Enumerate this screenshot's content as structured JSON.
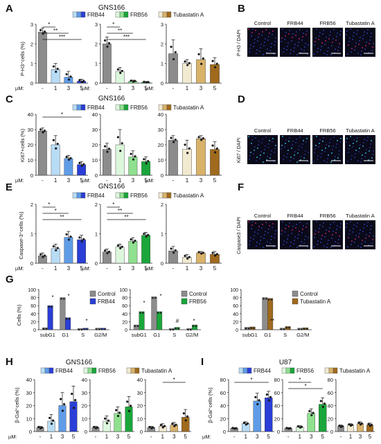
{
  "colors": {
    "gray": "#8c8c8c",
    "frb44": "#2b3ed6",
    "frb44_light": "#b8dcf5",
    "frb44_mid": "#5f9ce8",
    "frb56": "#1aa63a",
    "frb56_light": "#dcf7dc",
    "frb56_mid": "#8fe08f",
    "tuba": "#a06a1e",
    "tuba_light": "#f2ead0",
    "tuba_mid": "#d9b26a",
    "micro_bg": "#0a0a1a"
  },
  "legend": {
    "frb44": "FRB44",
    "frb56": "FRB56",
    "tuba": "Tubastatin  A",
    "control": "Control"
  },
  "dose_labels": [
    "-",
    "1",
    "3",
    "5"
  ],
  "um_label": "µM:",
  "panels": {
    "A": {
      "letter": "A",
      "title": "GNS166",
      "ylabel": "P-H3⁺cells (%)"
    },
    "B": {
      "letter": "B",
      "ylabel": "P-H3 / DAPI",
      "cols": [
        "Control",
        "FRB44",
        "FRB56",
        "Tubastatin  A"
      ]
    },
    "C": {
      "letter": "C",
      "title": "GNS166",
      "ylabel": "Ki67+cells (%)"
    },
    "D": {
      "letter": "D",
      "ylabel": "Ki67 / DAPI",
      "cols": [
        "Control",
        "FRB44",
        "FRB56",
        "Tubastatin  A"
      ]
    },
    "E": {
      "letter": "E",
      "title": "GNS166",
      "ylabel": "Caspase-3⁺cells (%)"
    },
    "F": {
      "letter": "F",
      "ylabel": "Caspase3 / DAPI",
      "cols": [
        "Control",
        "FRB44",
        "FRB56",
        "Tubastatin  A"
      ]
    },
    "G": {
      "letter": "G",
      "ylabel": "Cells (%)"
    },
    "H": {
      "letter": "H",
      "title": "GNS166",
      "ylabel": "β-Gal⁺cells (%)"
    },
    "I": {
      "letter": "I",
      "title": "U87",
      "ylabel": "β-Gal⁺cells (%)"
    }
  },
  "chart_data": [
    {
      "panel": "A",
      "type": "bar",
      "categories": [
        "-",
        "1",
        "3",
        "5"
      ],
      "ylabel": "P-H3⁺cells (%)",
      "ylim": [
        0,
        3
      ],
      "yticks": [
        0,
        1,
        2,
        3
      ],
      "series": [
        {
          "name": "FRB44",
          "values": [
            2.6,
            0.7,
            0.3,
            0.1
          ],
          "errors": [
            0.2,
            0.3,
            0.3,
            0.1
          ]
        }
      ],
      "significance": [
        "*",
        "**",
        "***",
        "***"
      ]
    },
    {
      "panel": "A",
      "type": "bar",
      "categories": [
        "-",
        "1",
        "3",
        "5"
      ],
      "ylim": [
        0,
        3
      ],
      "yticks": [
        0,
        1,
        2,
        3
      ],
      "series": [
        {
          "name": "FRB56",
          "values": [
            2.0,
            0.6,
            0.1,
            0.05
          ],
          "errors": [
            0.35,
            0.2,
            0.05,
            0.03
          ]
        }
      ],
      "significance": [
        "*",
        "**",
        "***",
        "***"
      ]
    },
    {
      "panel": "A",
      "type": "bar",
      "categories": [
        "-",
        "1",
        "3",
        "5"
      ],
      "ylim": [
        0,
        3
      ],
      "yticks": [
        0,
        1,
        2,
        3
      ],
      "series": [
        {
          "name": "Tubastatin  A",
          "values": [
            1.5,
            1.0,
            1.2,
            0.95
          ],
          "errors": [
            0.7,
            0.2,
            0.55,
            0.35
          ]
        }
      ]
    },
    {
      "panel": "C",
      "type": "bar",
      "categories": [
        "-",
        "1",
        "3",
        "5"
      ],
      "ylabel": "Ki67+cells (%)",
      "ylim": [
        0,
        40
      ],
      "yticks": [
        0,
        10,
        20,
        30,
        40
      ],
      "series": [
        {
          "name": "FRB44",
          "values": [
            29,
            20,
            11,
            7
          ],
          "errors": [
            2,
            6,
            2,
            2
          ]
        }
      ],
      "significance": [
        "*"
      ]
    },
    {
      "panel": "C",
      "type": "bar",
      "categories": [
        "-",
        "1",
        "3",
        "5"
      ],
      "ylim": [
        0,
        40
      ],
      "yticks": [
        0,
        10,
        20,
        30,
        40
      ],
      "series": [
        {
          "name": "FRB56",
          "values": [
            17,
            20,
            12,
            9
          ],
          "errors": [
            4,
            10,
            4,
            3
          ]
        }
      ]
    },
    {
      "panel": "C",
      "type": "bar",
      "categories": [
        "-",
        "1",
        "3",
        "5"
      ],
      "ylim": [
        0,
        40
      ],
      "yticks": [
        0,
        10,
        20,
        30,
        40
      ],
      "series": [
        {
          "name": "Tubastatin  A",
          "values": [
            23,
            17,
            24,
            17
          ],
          "errors": [
            3,
            6,
            2,
            5
          ]
        }
      ]
    },
    {
      "panel": "E",
      "type": "bar",
      "categories": [
        "-",
        "1",
        "3",
        "5"
      ],
      "ylabel": "Caspase-3⁺cells (%)",
      "ylim": [
        0,
        2
      ],
      "yticks": [
        0,
        1,
        2
      ],
      "series": [
        {
          "name": "FRB44",
          "values": [
            0.25,
            0.5,
            0.88,
            0.8
          ],
          "errors": [
            0.1,
            0.15,
            0.2,
            0.15
          ]
        }
      ],
      "significance": [
        "*",
        "*",
        "**"
      ]
    },
    {
      "panel": "E",
      "type": "bar",
      "categories": [
        "-",
        "1",
        "3",
        "5"
      ],
      "ylim": [
        0,
        2
      ],
      "yticks": [
        0,
        1,
        2
      ],
      "series": [
        {
          "name": "FRB56",
          "values": [
            0.38,
            0.55,
            0.75,
            0.95
          ],
          "errors": [
            0.1,
            0.1,
            0.12,
            0.1
          ]
        }
      ],
      "significance": [
        "*",
        "**",
        "**"
      ]
    },
    {
      "panel": "E",
      "type": "bar",
      "categories": [
        "-",
        "1",
        "3",
        "5"
      ],
      "ylim": [
        0,
        2
      ],
      "yticks": [
        0,
        1,
        2
      ],
      "series": [
        {
          "name": "Tubastatin  A",
          "values": [
            0.42,
            0.2,
            0.35,
            0.3
          ],
          "errors": [
            0.15,
            0.1,
            0.05,
            0.1
          ]
        }
      ]
    },
    {
      "panel": "G",
      "type": "bar",
      "categories": [
        "subG1",
        "G1",
        "S",
        "G2/M"
      ],
      "ylabel": "Cells (%)",
      "ylim": [
        0,
        100
      ],
      "yticks": [
        0,
        20,
        40,
        60,
        80,
        100
      ],
      "series": [
        {
          "name": "Control",
          "values": [
            5,
            80,
            3,
            4
          ]
        },
        {
          "name": "FRB44",
          "values": [
            60,
            30,
            4,
            4
          ]
        }
      ]
    },
    {
      "panel": "G",
      "type": "bar",
      "categories": [
        "subG1",
        "G1",
        "S",
        "G2/M"
      ],
      "ylim": [
        0,
        100
      ],
      "yticks": [
        0,
        20,
        40,
        60,
        80,
        100
      ],
      "series": [
        {
          "name": "Control",
          "values": [
            12,
            82,
            3,
            3
          ]
        },
        {
          "name": "FRB56",
          "values": [
            45,
            45,
            6,
            12
          ]
        }
      ]
    },
    {
      "panel": "G",
      "type": "bar",
      "categories": [
        "subG1",
        "G1",
        "S",
        "G2/M"
      ],
      "ylim": [
        0,
        100
      ],
      "yticks": [
        0,
        20,
        40,
        60,
        80,
        100
      ],
      "series": [
        {
          "name": "Control",
          "values": [
            6,
            80,
            4,
            4
          ]
        },
        {
          "name": "Tubastatin  A",
          "values": [
            7,
            78,
            8,
            5
          ]
        }
      ]
    },
    {
      "panel": "H",
      "type": "bar",
      "categories": [
        "-",
        "1",
        "3",
        "5"
      ],
      "ylabel": "β-Gal⁺cells (%)",
      "ylim": [
        0,
        40
      ],
      "yticks": [
        0,
        10,
        20,
        30,
        40
      ],
      "series": [
        {
          "name": "FRB44",
          "values": [
            3,
            8,
            20,
            23
          ],
          "errors": [
            1,
            5,
            10,
            12
          ]
        }
      ]
    },
    {
      "panel": "H",
      "type": "bar",
      "categories": [
        "-",
        "1",
        "3",
        "5"
      ],
      "ylim": [
        0,
        40
      ],
      "yticks": [
        0,
        10,
        20,
        30,
        40
      ],
      "series": [
        {
          "name": "FRB56",
          "values": [
            3,
            8,
            14,
            19
          ],
          "errors": [
            1,
            4,
            5,
            8
          ]
        }
      ]
    },
    {
      "panel": "H",
      "type": "bar",
      "categories": [
        "-",
        "1",
        "3",
        "5"
      ],
      "ylim": [
        0,
        40
      ],
      "yticks": [
        0,
        10,
        20,
        30,
        40
      ],
      "series": [
        {
          "name": "Tubastatin  A",
          "values": [
            3,
            4,
            5,
            11
          ],
          "errors": [
            1,
            2,
            2,
            6
          ]
        }
      ],
      "significance": [
        "*"
      ]
    },
    {
      "panel": "I",
      "type": "bar",
      "categories": [
        "-",
        "1",
        "3",
        "5"
      ],
      "ylabel": "β-Gal⁺cells (%)",
      "ylim": [
        0,
        80
      ],
      "yticks": [
        0,
        20,
        40,
        60,
        80
      ],
      "series": [
        {
          "name": "FRB44",
          "values": [
            5,
            12,
            47,
            52
          ],
          "errors": [
            1,
            3,
            12,
            10
          ]
        }
      ],
      "significance": [
        "*"
      ]
    },
    {
      "panel": "I",
      "type": "bar",
      "categories": [
        "-",
        "1",
        "3",
        "5"
      ],
      "ylim": [
        0,
        80
      ],
      "yticks": [
        0,
        20,
        40,
        60,
        80
      ],
      "series": [
        {
          "name": "FRB56",
          "values": [
            5,
            7,
            28,
            42
          ],
          "errors": [
            1,
            2,
            7,
            10
          ]
        }
      ],
      "significance": [
        "*",
        "*"
      ]
    },
    {
      "panel": "I",
      "type": "bar",
      "categories": [
        "-",
        "1",
        "3",
        "5"
      ],
      "ylim": [
        0,
        80
      ],
      "yticks": [
        0,
        20,
        40,
        60,
        80
      ],
      "series": [
        {
          "name": "Tubastatin  A",
          "values": [
            8,
            10,
            12,
            10
          ],
          "errors": [
            2,
            2,
            3,
            3
          ]
        }
      ]
    }
  ]
}
